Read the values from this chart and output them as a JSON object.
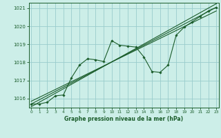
{
  "title": "Graphe pression niveau de la mer (hPa)",
  "bg_color": "#cceee8",
  "grid_color": "#99cccc",
  "line_color": "#1a5c2a",
  "xlim": [
    -0.3,
    23.3
  ],
  "ylim": [
    1015.5,
    1021.3
  ],
  "yticks": [
    1016,
    1017,
    1018,
    1019,
    1020,
    1021
  ],
  "xticks": [
    0,
    1,
    2,
    3,
    4,
    5,
    6,
    7,
    8,
    9,
    10,
    11,
    12,
    13,
    14,
    15,
    16,
    17,
    18,
    19,
    20,
    21,
    22,
    23
  ],
  "main_series": [
    [
      0,
      1015.7
    ],
    [
      1,
      1015.7
    ],
    [
      2,
      1015.8
    ],
    [
      3,
      1016.15
    ],
    [
      4,
      1016.2
    ],
    [
      5,
      1017.15
    ],
    [
      6,
      1017.85
    ],
    [
      7,
      1018.2
    ],
    [
      8,
      1018.15
    ],
    [
      9,
      1018.05
    ],
    [
      10,
      1019.2
    ],
    [
      11,
      1018.95
    ],
    [
      12,
      1018.9
    ],
    [
      13,
      1018.85
    ],
    [
      14,
      1018.3
    ],
    [
      15,
      1017.5
    ],
    [
      16,
      1017.45
    ],
    [
      17,
      1017.85
    ],
    [
      18,
      1019.5
    ],
    [
      19,
      1019.95
    ],
    [
      20,
      1020.25
    ],
    [
      21,
      1020.55
    ],
    [
      22,
      1020.85
    ],
    [
      23,
      1021.05
    ]
  ],
  "trend_line1": [
    [
      0,
      1015.7
    ],
    [
      23,
      1021.05
    ]
  ],
  "trend_line2": [
    [
      0,
      1015.85
    ],
    [
      23,
      1020.85
    ]
  ],
  "trend_line3": [
    [
      0,
      1015.55
    ],
    [
      23,
      1021.25
    ]
  ]
}
